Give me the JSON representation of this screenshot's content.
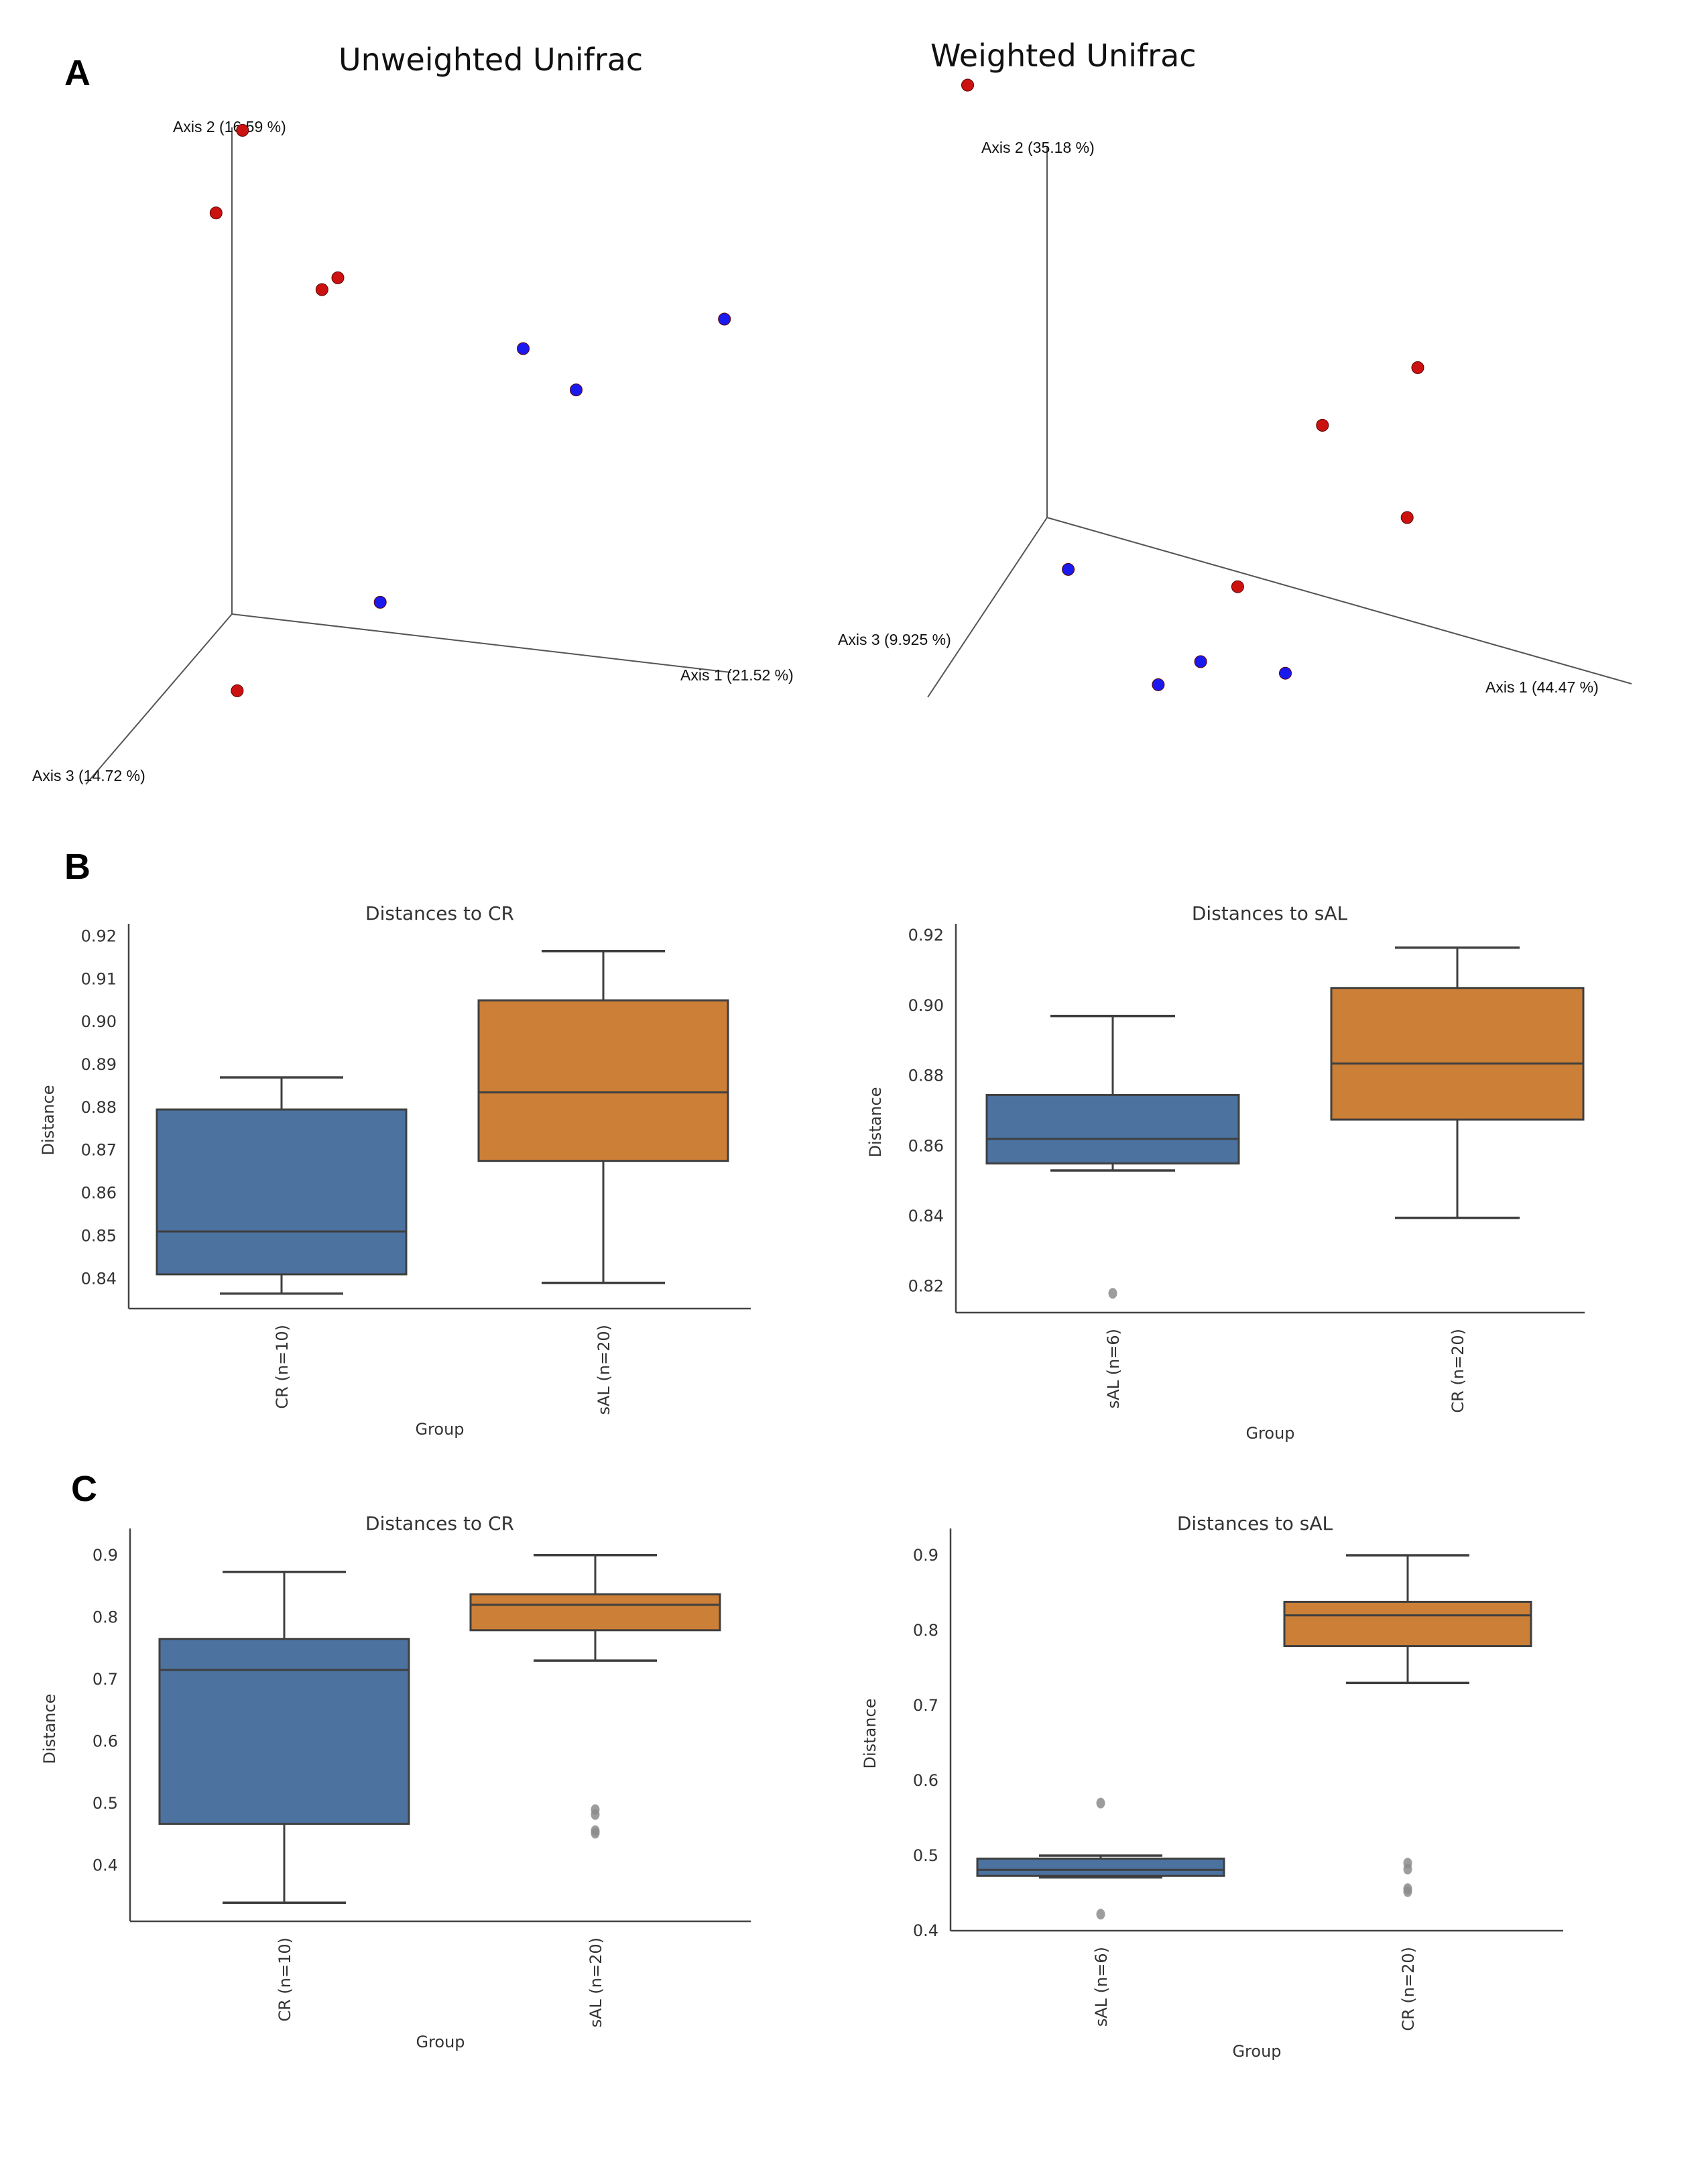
{
  "panels": {
    "A": "A",
    "B": "B",
    "C": "C"
  },
  "colors": {
    "group_red": "#cc1111",
    "group_blue": "#1a1aee",
    "box_blue": "#4c72a0",
    "box_orange": "#cc7f37",
    "outlier_gray": "#8c8c8c",
    "line_dark": "#3f3f3f"
  },
  "chart_data": [
    {
      "id": "unweighted",
      "type": "scatter",
      "subtype": "pcoa-3d",
      "title": "Unweighted Unifrac",
      "axes": {
        "axis1": "Axis 1 (21.52 %)",
        "axis2": "Axis 2 (16.59 %)",
        "axis3": "Axis 3 (14.72 %)"
      },
      "series": [
        {
          "name": "red",
          "color": "#cc1111",
          "points": [
            [
              0.02,
              0.82,
              0.0
            ],
            [
              -0.03,
              0.68,
              0.0
            ],
            [
              0.2,
              0.57,
              0.0
            ],
            [
              0.17,
              0.55,
              0.0
            ],
            [
              0.01,
              -0.13,
              0.0
            ]
          ]
        },
        {
          "name": "blue",
          "color": "#1a1aee",
          "points": [
            [
              0.55,
              0.45,
              0.0
            ],
            [
              0.65,
              0.38,
              0.0
            ],
            [
              0.93,
              0.5,
              0.0
            ],
            [
              0.28,
              0.02,
              0.0
            ]
          ]
        }
      ]
    },
    {
      "id": "weighted",
      "type": "scatter",
      "subtype": "pcoa-3d",
      "title": "Weighted Unifrac",
      "axes": {
        "axis1": "Axis 1 (44.47 %)",
        "axis2": "Axis 2 (35.18 %)",
        "axis3": "Axis 3 (9.925 %)"
      },
      "series": [
        {
          "name": "red",
          "color": "#cc1111",
          "points": [
            [
              -0.15,
              0.75,
              0.0
            ],
            [
              0.7,
              0.26,
              0.0
            ],
            [
              0.52,
              0.16,
              0.0
            ],
            [
              0.68,
              0.0,
              0.0
            ],
            [
              0.36,
              -0.12,
              0.0
            ]
          ]
        },
        {
          "name": "blue",
          "color": "#1a1aee",
          "points": [
            [
              0.04,
              -0.09,
              0.0
            ],
            [
              0.21,
              -0.29,
              0.0
            ],
            [
              0.29,
              -0.25,
              0.0
            ],
            [
              0.45,
              -0.27,
              0.0
            ]
          ]
        }
      ]
    },
    {
      "id": "B-left",
      "type": "box",
      "title": "Distances to CR",
      "xlabel": "Group",
      "ylabel": "Distance",
      "ylim": [
        0.833,
        0.921
      ],
      "yticks": [
        "0.84",
        "0.85",
        "0.86",
        "0.87",
        "0.88",
        "0.89",
        "0.90",
        "0.91",
        "0.92"
      ],
      "ytick_values": [
        0.84,
        0.85,
        0.86,
        0.87,
        0.88,
        0.89,
        0.9,
        0.91,
        0.92
      ],
      "categories": [
        "CR (n=10)",
        "sAL (n=20)"
      ],
      "boxes": [
        {
          "label": "CR (n=10)",
          "color": "#4c72a0",
          "whisker_low": 0.8365,
          "q1": 0.841,
          "median": 0.851,
          "q3": 0.8795,
          "whisker_high": 0.887,
          "outliers": []
        },
        {
          "label": "sAL (n=20)",
          "color": "#cc7f37",
          "whisker_low": 0.839,
          "q1": 0.8675,
          "median": 0.8835,
          "q3": 0.905,
          "whisker_high": 0.9165,
          "outliers": []
        }
      ]
    },
    {
      "id": "B-right",
      "type": "box",
      "title": "Distances to sAL",
      "xlabel": "Group",
      "ylabel": "Distance",
      "ylim": [
        0.8125,
        0.921
      ],
      "yticks": [
        "0.82",
        "0.84",
        "0.86",
        "0.88",
        "0.90",
        "0.92"
      ],
      "ytick_values": [
        0.82,
        0.84,
        0.86,
        0.88,
        0.9,
        0.92
      ],
      "categories": [
        "sAL (n=6)",
        "CR (n=20)"
      ],
      "boxes": [
        {
          "label": "sAL (n=6)",
          "color": "#4c72a0",
          "whisker_low": 0.853,
          "q1": 0.855,
          "median": 0.862,
          "q3": 0.8745,
          "whisker_high": 0.897,
          "outliers": [
            0.818
          ]
        },
        {
          "label": "CR (n=20)",
          "color": "#cc7f37",
          "whisker_low": 0.8395,
          "q1": 0.8675,
          "median": 0.8835,
          "q3": 0.905,
          "whisker_high": 0.9165,
          "outliers": []
        }
      ]
    },
    {
      "id": "C-left",
      "type": "box",
      "title": "Distances to CR",
      "xlabel": "Group",
      "ylabel": "Distance",
      "ylim": [
        0.31,
        0.93
      ],
      "yticks": [
        "0.4",
        "0.5",
        "0.6",
        "0.7",
        "0.8",
        "0.9"
      ],
      "ytick_values": [
        0.4,
        0.5,
        0.6,
        0.7,
        0.8,
        0.9
      ],
      "categories": [
        "CR (n=10)",
        "sAL (n=20)"
      ],
      "boxes": [
        {
          "label": "CR (n=10)",
          "color": "#4c72a0",
          "whisker_low": 0.34,
          "q1": 0.467,
          "median": 0.715,
          "q3": 0.765,
          "whisker_high": 0.873,
          "outliers": []
        },
        {
          "label": "sAL (n=20)",
          "color": "#cc7f37",
          "whisker_low": 0.73,
          "q1": 0.779,
          "median": 0.82,
          "q3": 0.837,
          "whisker_high": 0.9,
          "outliers": [
            0.49,
            0.482,
            0.456,
            0.452
          ]
        }
      ]
    },
    {
      "id": "C-right",
      "type": "box",
      "title": "Distances to sAL",
      "xlabel": "Group",
      "ylabel": "Distance",
      "ylim": [
        0.4,
        0.925
      ],
      "yticks": [
        "0.4",
        "0.5",
        "0.6",
        "0.7",
        "0.8",
        "0.9"
      ],
      "ytick_values": [
        0.4,
        0.5,
        0.6,
        0.7,
        0.8,
        0.9
      ],
      "categories": [
        "sAL (n=6)",
        "CR (n=20)"
      ],
      "boxes": [
        {
          "label": "sAL (n=6)",
          "color": "#4c72a0",
          "whisker_low": 0.471,
          "q1": 0.473,
          "median": 0.481,
          "q3": 0.496,
          "whisker_high": 0.5,
          "outliers": [
            0.57,
            0.422
          ]
        },
        {
          "label": "CR (n=20)",
          "color": "#cc7f37",
          "whisker_low": 0.73,
          "q1": 0.779,
          "median": 0.82,
          "q3": 0.838,
          "whisker_high": 0.9,
          "outliers": [
            0.49,
            0.482,
            0.456,
            0.452
          ]
        }
      ]
    }
  ]
}
